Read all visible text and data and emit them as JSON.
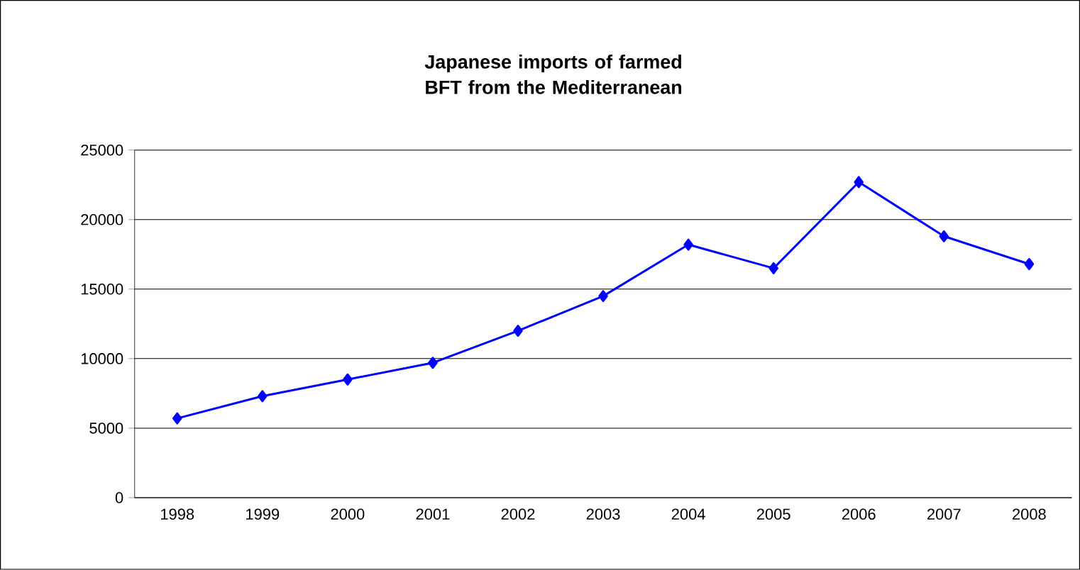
{
  "chart_data": {
    "type": "line",
    "title": "Japanese imports of farmed BFT from the Mediterranean",
    "categories": [
      "1998",
      "1999",
      "2000",
      "2001",
      "2002",
      "2003",
      "2004",
      "2005",
      "2006",
      "2007",
      "2008"
    ],
    "series": [
      {
        "color": "#0000ff",
        "values": [
          5700,
          7300,
          8500,
          9700,
          12000,
          14500,
          18200,
          16500,
          22700,
          18800,
          16800
        ]
      }
    ],
    "ylim": [
      0,
      25000
    ],
    "yticks": [
      0,
      5000,
      10000,
      15000,
      20000,
      25000
    ],
    "grid": "y",
    "marker": "diamond",
    "line_style": "solid"
  }
}
